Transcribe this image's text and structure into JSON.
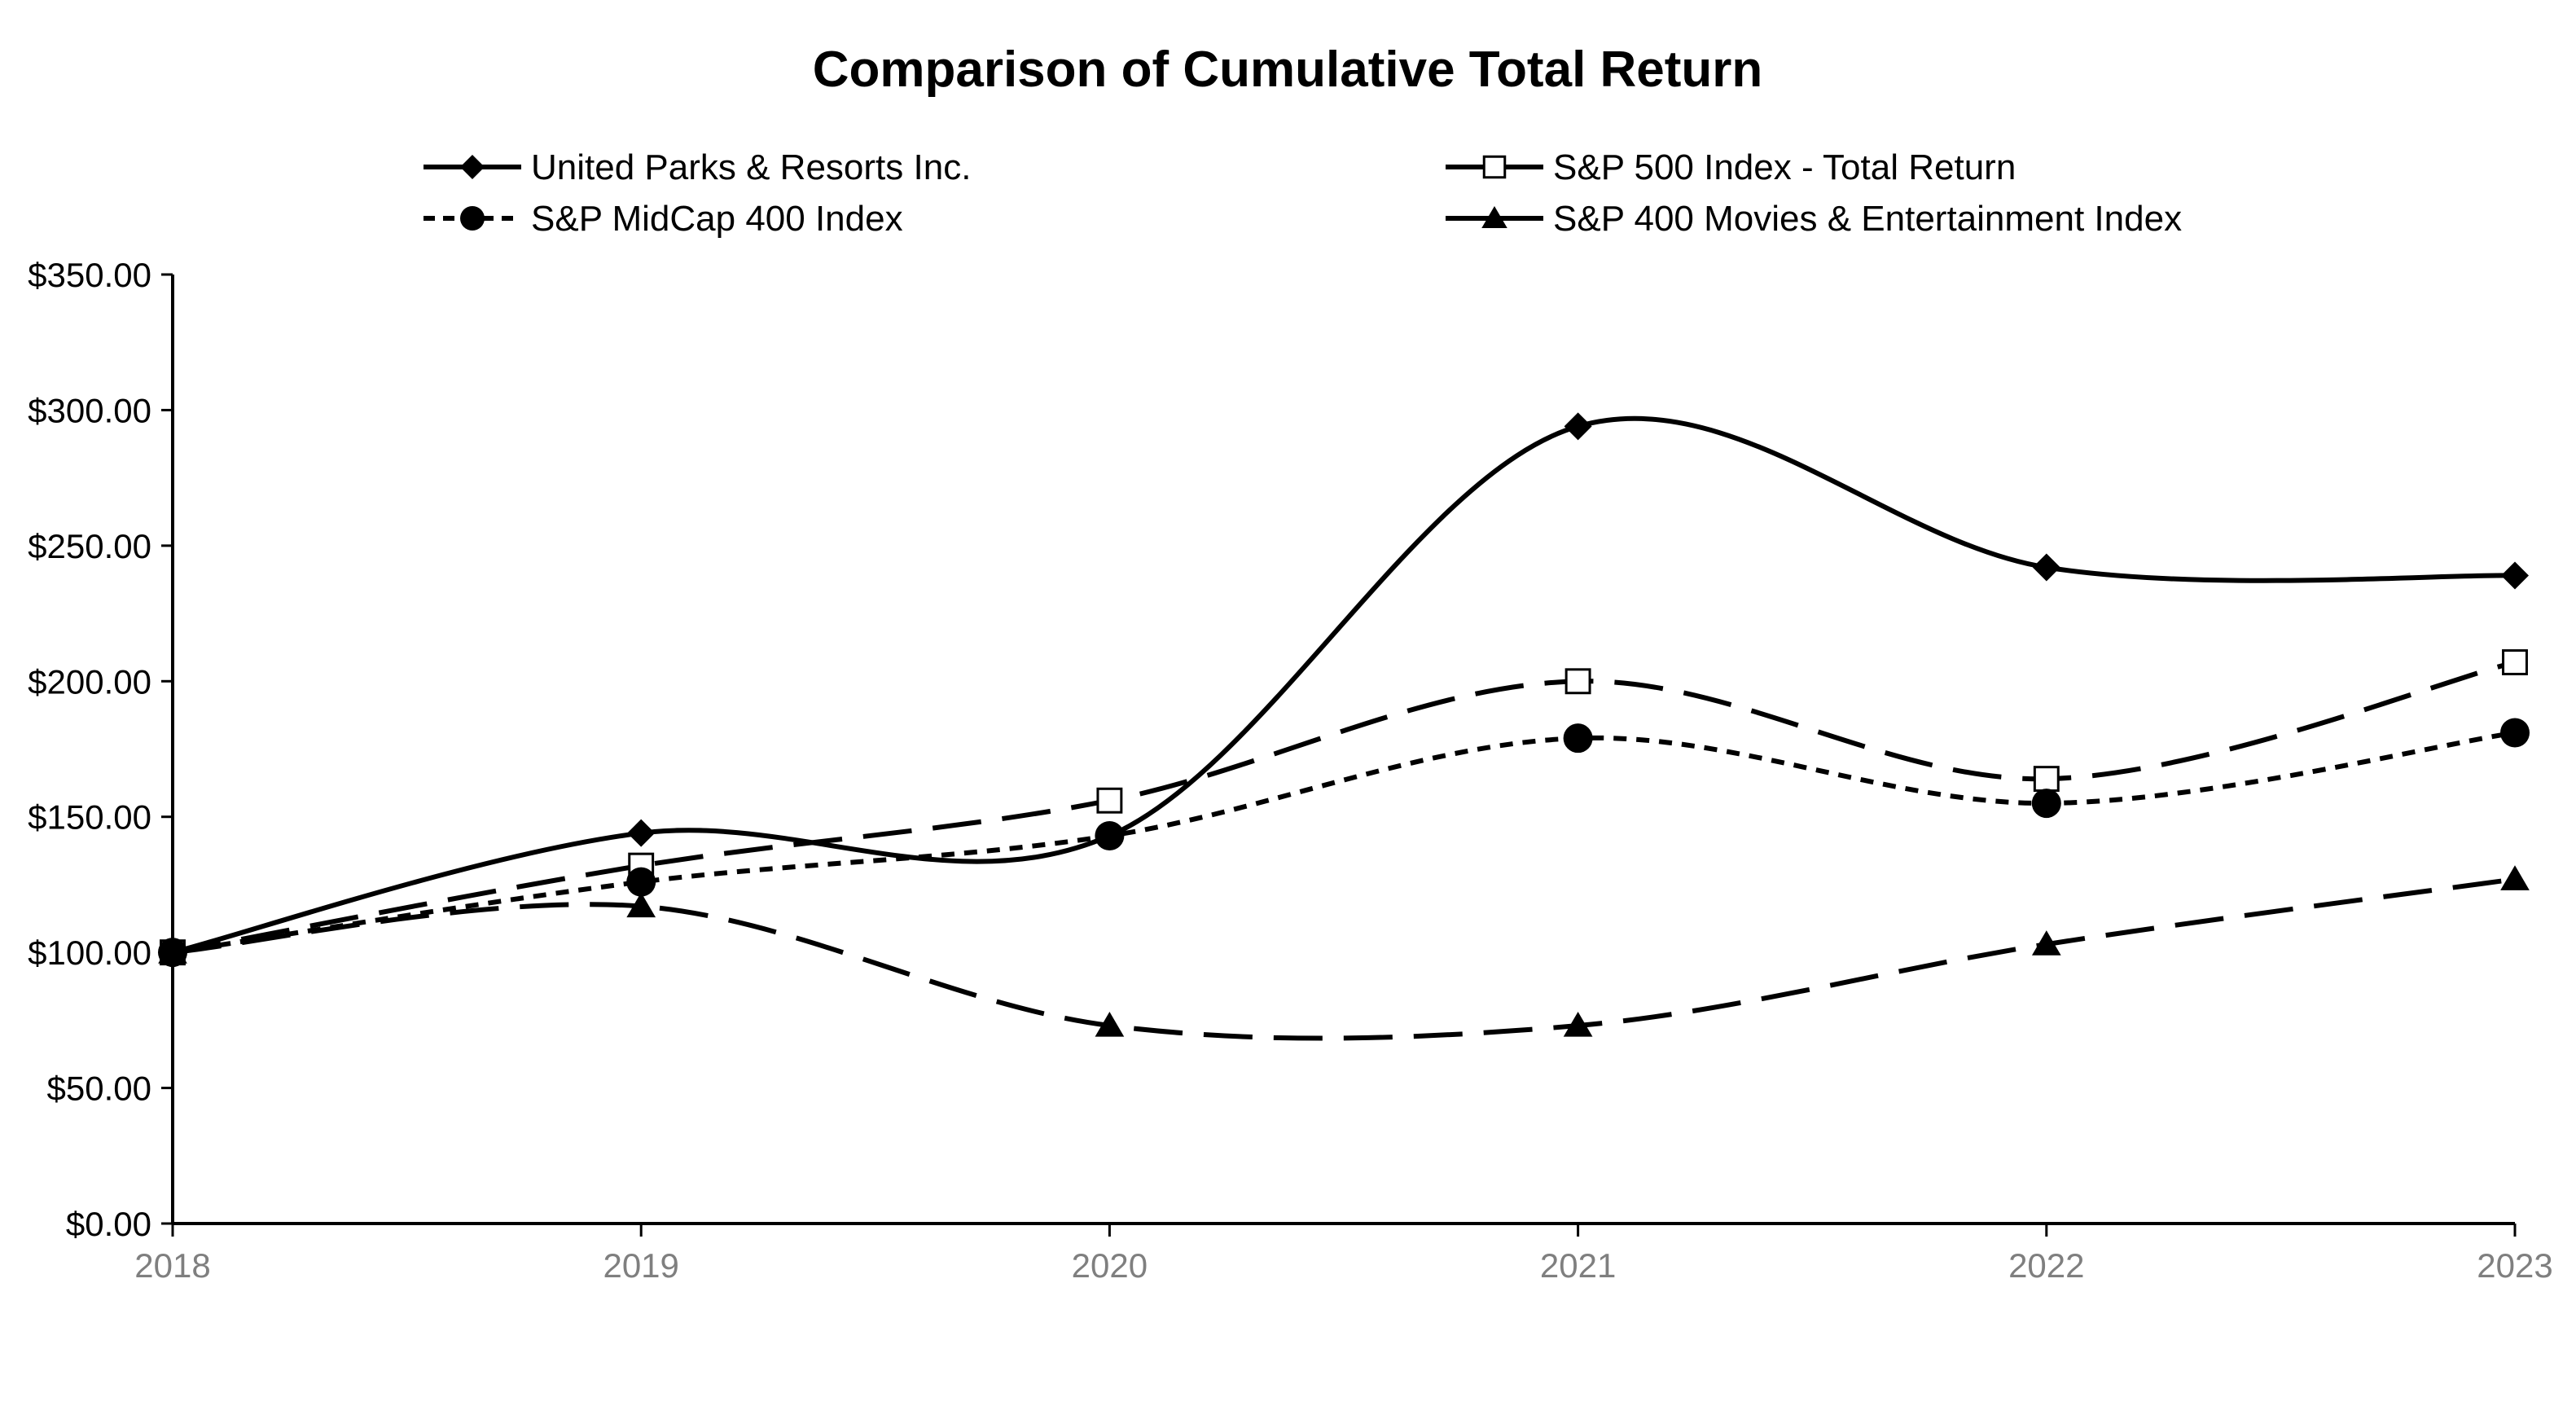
{
  "chart_data": {
    "type": "line",
    "title": "Comparison of Cumulative Total Return",
    "xlabel": "",
    "ylabel": "",
    "categories": [
      "2018",
      "2019",
      "2020",
      "2021",
      "2022",
      "2023"
    ],
    "ylim": [
      0,
      350
    ],
    "yticks": [
      0,
      50,
      100,
      150,
      200,
      250,
      300,
      350
    ],
    "ytick_labels": [
      "$0.00",
      "$50.00",
      "$100.00",
      "$150.00",
      "$200.00",
      "$250.00",
      "$300.00",
      "$350.00"
    ],
    "grid": false,
    "legend_position": "top",
    "series": [
      {
        "name": "United Parks & Resorts Inc.",
        "values": [
          100,
          144,
          143,
          294,
          242,
          239
        ],
        "marker": "diamond",
        "dash": "solid",
        "color": "#000000"
      },
      {
        "name": "S&P 500 Index - Total Return",
        "values": [
          100,
          132,
          156,
          200,
          164,
          207
        ],
        "marker": "square-open",
        "dash": "long-dash",
        "color": "#000000"
      },
      {
        "name": "S&P MidCap 400 Index",
        "values": [
          100,
          126,
          143,
          179,
          155,
          181
        ],
        "marker": "circle",
        "dash": "short-dash",
        "color": "#000000"
      },
      {
        "name": "S&P 400 Movies & Entertainment Index",
        "values": [
          100,
          117,
          73,
          73,
          103,
          127
        ],
        "marker": "triangle",
        "dash": "long-dash",
        "color": "#000000"
      }
    ]
  }
}
